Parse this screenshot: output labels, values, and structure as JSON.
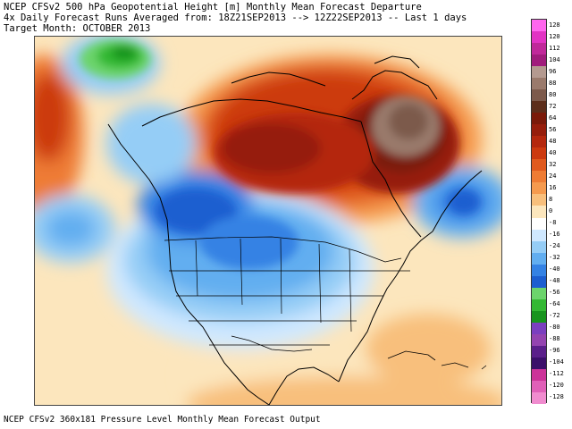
{
  "header": {
    "line1": "NCEP CFSv2 500 hPa Geopotential Height [m] Monthly Mean Forecast Departure",
    "line2": "4x Daily Forecast Runs Averaged from: 18Z21SEP2013 --> 12Z22SEP2013 -- Last 1 days",
    "line3": "Target Month: OCTOBER 2013"
  },
  "footer": {
    "text": "NCEP CFSv2 360x181 Pressure Level Monthly Mean Forecast Output"
  },
  "colorbar": {
    "labels": [
      "128",
      "120",
      "112",
      "104",
      "96",
      "88",
      "80",
      "72",
      "64",
      "56",
      "48",
      "40",
      "32",
      "24",
      "16",
      "8",
      "0",
      "-8",
      "-16",
      "-24",
      "-32",
      "-40",
      "-48",
      "-56",
      "-64",
      "-72",
      "-80",
      "-88",
      "-96",
      "-104",
      "-112",
      "-120",
      "-128"
    ],
    "colors": [
      "#ff66ee",
      "#e233c4",
      "#c0289a",
      "#a01c7c",
      "#b49a90",
      "#9a7a6c",
      "#7c5a4c",
      "#5c2e1c",
      "#7a1a0a",
      "#961e0c",
      "#b4280e",
      "#cc3a10",
      "#e05a1e",
      "#ee7c34",
      "#f59a4e",
      "#f8bf7c",
      "#fce6bd",
      "#ffffff",
      "#cfe8ff",
      "#95cdf6",
      "#62aef0",
      "#3482e4",
      "#1c5ed0",
      "#6cd46c",
      "#33b833",
      "#17941d",
      "#7b3fbf",
      "#9444b0",
      "#5a1f8a",
      "#3b0f6a",
      "#cc3399",
      "#e060b8",
      "#f08ccf"
    ]
  }
}
